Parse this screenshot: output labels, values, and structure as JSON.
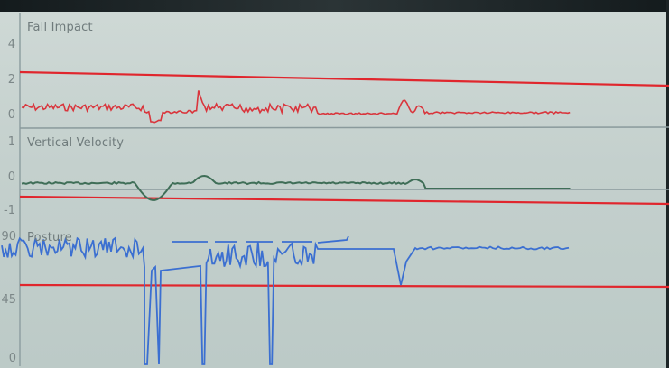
{
  "panels": [
    {
      "id": "fall-impact",
      "title": "Fall Impact",
      "ticks": [
        "4",
        "2",
        "0"
      ],
      "threshold_color": "#e0262d",
      "signal_color": "#d9353c"
    },
    {
      "id": "vertical-velocity",
      "title": "Vertical Velocity",
      "ticks": [
        "1",
        "0",
        "-1"
      ],
      "threshold_color": "#e0262d",
      "signal_color": "#3f6e57"
    },
    {
      "id": "posture",
      "title": "Posture",
      "ticks": [
        "90",
        "45",
        "0"
      ],
      "threshold_color": "#e0262d",
      "signal_color": "#3b6fd1"
    }
  ],
  "colors": {
    "background": "#c8d3d0",
    "axis": "#8a9a9c"
  }
}
